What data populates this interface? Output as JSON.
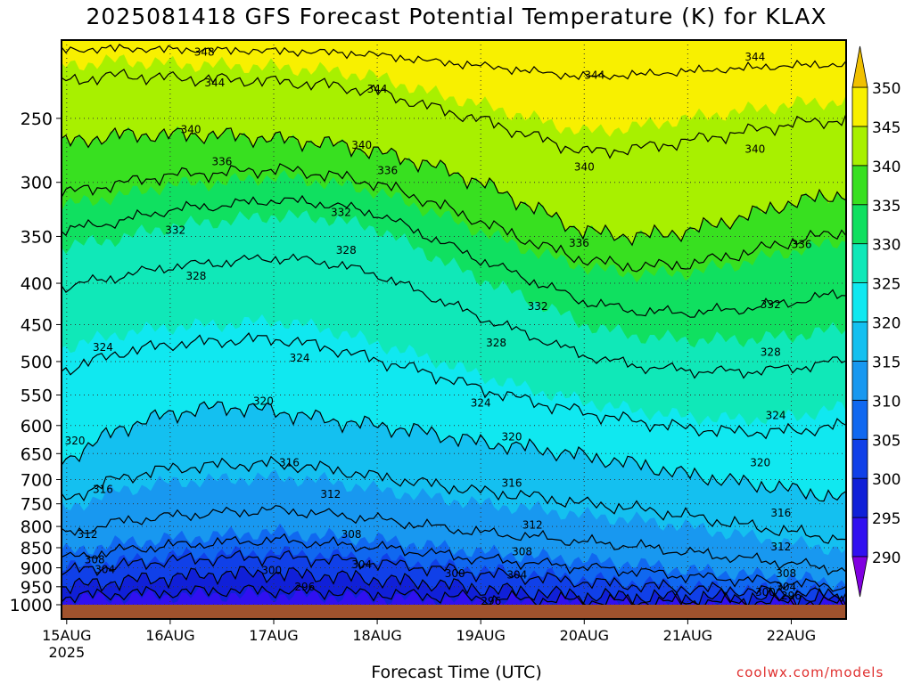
{
  "chart_data": {
    "type": "heatmap",
    "title": "2025081418 GFS Forecast Potential Temperature (K) for KLAX",
    "xlabel": "Forecast Time (UTC)",
    "ylabel": "",
    "credit": "coolwx.com/models",
    "x_ticks": [
      {
        "label": "15AUG",
        "sub": "2025",
        "day": 0
      },
      {
        "label": "16AUG",
        "sub": "",
        "day": 1
      },
      {
        "label": "17AUG",
        "sub": "",
        "day": 2
      },
      {
        "label": "18AUG",
        "sub": "",
        "day": 3
      },
      {
        "label": "19AUG",
        "sub": "",
        "day": 4
      },
      {
        "label": "20AUG",
        "sub": "",
        "day": 5
      },
      {
        "label": "21AUG",
        "sub": "",
        "day": 6
      },
      {
        "label": "22AUG",
        "sub": "",
        "day": 7
      }
    ],
    "xlim_days": [
      -0.05,
      7.53
    ],
    "y_ticks": [
      250,
      300,
      350,
      400,
      450,
      500,
      550,
      600,
      650,
      700,
      750,
      800,
      850,
      900,
      950,
      1000
    ],
    "ylim_hPa": [
      200,
      1000
    ],
    "y_scale": "log-pressure",
    "colorbar": {
      "ticks": [
        290,
        295,
        300,
        305,
        310,
        315,
        320,
        325,
        330,
        335,
        340,
        345,
        350
      ],
      "colors": [
        "#8000e0",
        "#3010f0",
        "#1020d8",
        "#1040e8",
        "#1068f0",
        "#1898f0",
        "#14c0f0",
        "#10e8f0",
        "#10e8b8",
        "#10e060",
        "#38e020",
        "#a8f000",
        "#f8f000",
        "#f0c000"
      ]
    },
    "contour_interval": 4,
    "contour_levels": [
      296,
      300,
      304,
      308,
      312,
      316,
      320,
      324,
      328,
      332,
      336,
      340,
      344,
      348
    ],
    "contour_labels": [
      {
        "value": "348",
        "day": 1.33,
        "p": 207
      },
      {
        "value": "344",
        "day": 1.43,
        "p": 226
      },
      {
        "value": "344",
        "day": 3.0,
        "p": 230
      },
      {
        "value": "344",
        "day": 5.1,
        "p": 221
      },
      {
        "value": "344",
        "day": 6.65,
        "p": 210
      },
      {
        "value": "340",
        "day": 1.2,
        "p": 258
      },
      {
        "value": "340",
        "day": 2.85,
        "p": 270
      },
      {
        "value": "340",
        "day": 5.0,
        "p": 287
      },
      {
        "value": "340",
        "day": 6.65,
        "p": 273
      },
      {
        "value": "336",
        "day": 1.5,
        "p": 283
      },
      {
        "value": "336",
        "day": 3.1,
        "p": 290
      },
      {
        "value": "336",
        "day": 4.95,
        "p": 357
      },
      {
        "value": "336",
        "day": 7.1,
        "p": 358
      },
      {
        "value": "332",
        "day": 1.05,
        "p": 344
      },
      {
        "value": "332",
        "day": 2.65,
        "p": 327
      },
      {
        "value": "332",
        "day": 4.55,
        "p": 427
      },
      {
        "value": "332",
        "day": 6.8,
        "p": 425
      },
      {
        "value": "328",
        "day": 1.25,
        "p": 392
      },
      {
        "value": "328",
        "day": 2.7,
        "p": 364
      },
      {
        "value": "328",
        "day": 4.15,
        "p": 474
      },
      {
        "value": "328",
        "day": 6.8,
        "p": 487
      },
      {
        "value": "324",
        "day": 0.35,
        "p": 480
      },
      {
        "value": "324",
        "day": 2.25,
        "p": 495
      },
      {
        "value": "324",
        "day": 4.0,
        "p": 563
      },
      {
        "value": "324",
        "day": 6.85,
        "p": 583
      },
      {
        "value": "320",
        "day": 1.9,
        "p": 560
      },
      {
        "value": "320",
        "day": 0.08,
        "p": 627
      },
      {
        "value": "320",
        "day": 4.3,
        "p": 620
      },
      {
        "value": "320",
        "day": 6.7,
        "p": 667
      },
      {
        "value": "316",
        "day": 2.15,
        "p": 667
      },
      {
        "value": "316",
        "day": 0.35,
        "p": 720
      },
      {
        "value": "316",
        "day": 4.3,
        "p": 707
      },
      {
        "value": "316",
        "day": 6.9,
        "p": 770
      },
      {
        "value": "312",
        "day": 2.55,
        "p": 730
      },
      {
        "value": "312",
        "day": 0.2,
        "p": 818
      },
      {
        "value": "312",
        "day": 4.5,
        "p": 797
      },
      {
        "value": "312",
        "day": 6.9,
        "p": 848
      },
      {
        "value": "308",
        "day": 2.75,
        "p": 818
      },
      {
        "value": "308",
        "day": 0.27,
        "p": 880
      },
      {
        "value": "308",
        "day": 4.4,
        "p": 860
      },
      {
        "value": "308",
        "day": 6.95,
        "p": 915
      },
      {
        "value": "304",
        "day": 2.85,
        "p": 892
      },
      {
        "value": "304",
        "day": 0.37,
        "p": 905
      },
      {
        "value": "304",
        "day": 4.35,
        "p": 918
      },
      {
        "value": "304",
        "day": 6.95,
        "p": 950
      },
      {
        "value": "300",
        "day": 1.98,
        "p": 907
      },
      {
        "value": "300",
        "day": 3.75,
        "p": 915
      },
      {
        "value": "300",
        "day": 6.75,
        "p": 965
      },
      {
        "value": "296",
        "day": 2.3,
        "p": 950
      },
      {
        "value": "296",
        "day": 4.1,
        "p": 990
      },
      {
        "value": "296",
        "day": 7.0,
        "p": 975
      }
    ],
    "series": [
      {
        "level": 290,
        "p": [
          1010,
          1010,
          1010,
          1010,
          1010,
          1010,
          1010,
          1010,
          1010,
          1010,
          1010,
          1010,
          1010,
          1010,
          1010,
          1010
        ]
      },
      {
        "level": 295,
        "p": [
          985,
          978,
          975,
          972,
          972,
          975,
          980,
          983,
          988,
          990,
          992,
          995,
          995,
          995,
          995,
          998
        ]
      },
      {
        "level": 300,
        "p": [
          950,
          935,
          925,
          915,
          915,
          920,
          930,
          940,
          955,
          965,
          975,
          978,
          980,
          980,
          982,
          985
        ]
      },
      {
        "level": 305,
        "p": [
          900,
          885,
          870,
          865,
          862,
          868,
          878,
          890,
          905,
          915,
          928,
          938,
          948,
          955,
          962,
          968
        ]
      },
      {
        "level": 310,
        "p": [
          860,
          838,
          828,
          820,
          812,
          822,
          830,
          845,
          860,
          870,
          880,
          890,
          905,
          915,
          925,
          940
        ]
      },
      {
        "level": 315,
        "p": [
          760,
          722,
          705,
          700,
          695,
          702,
          720,
          735,
          750,
          760,
          775,
          785,
          800,
          820,
          838,
          855
        ]
      },
      {
        "level": 320,
        "p": [
          660,
          605,
          580,
          568,
          575,
          590,
          600,
          612,
          630,
          640,
          655,
          670,
          690,
          705,
          720,
          740
        ]
      },
      {
        "level": 325,
        "p": [
          480,
          462,
          453,
          450,
          445,
          455,
          475,
          495,
          520,
          542,
          560,
          575,
          585,
          590,
          585,
          570
        ]
      },
      {
        "level": 330,
        "p": [
          360,
          352,
          340,
          335,
          330,
          332,
          342,
          368,
          395,
          420,
          450,
          465,
          470,
          470,
          465,
          455
        ]
      },
      {
        "level": 335,
        "p": [
          320,
          312,
          302,
          300,
          295,
          300,
          308,
          325,
          345,
          365,
          382,
          390,
          388,
          378,
          365,
          355
        ]
      },
      {
        "level": 340,
        "p": [
          268,
          262,
          262,
          262,
          265,
          268,
          275,
          285,
          300,
          322,
          345,
          350,
          345,
          332,
          318,
          310
        ]
      },
      {
        "level": 345,
        "p": [
          215,
          212,
          214,
          215,
          216,
          218,
          222,
          232,
          240,
          250,
          260,
          256,
          250,
          245,
          240,
          238
        ]
      },
      {
        "level": 350,
        "p": [
          198,
          198,
          198,
          198,
          198,
          198,
          198,
          198,
          198,
          198,
          198,
          198,
          198,
          198,
          198,
          198
        ]
      }
    ],
    "series_days": [
      0,
      0.5,
      1,
      1.5,
      2,
      2.5,
      3,
      3.5,
      4,
      4.5,
      5,
      5.5,
      6,
      6.5,
      7,
      7.5
    ]
  }
}
